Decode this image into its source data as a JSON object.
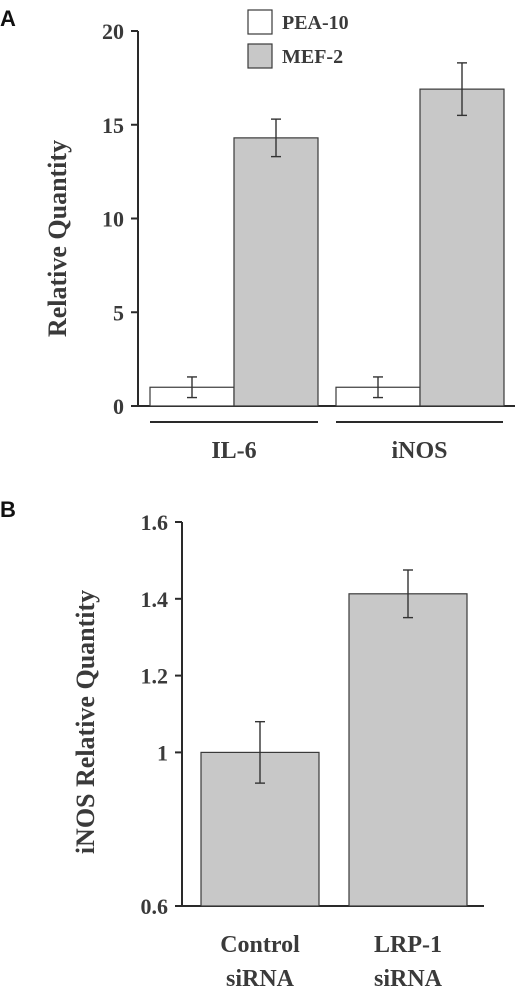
{
  "chart_data": [
    {
      "panel": "A",
      "type": "bar",
      "ylabel": "Relative Quantity",
      "ylim": [
        0,
        20
      ],
      "yticks": [
        "0",
        "5",
        "10",
        "15",
        "20"
      ],
      "categories": [
        "IL-6",
        "iNOS"
      ],
      "legend_position": "top-center",
      "series": [
        {
          "name": "PEA-10",
          "color": "#ffffff",
          "values": [
            1.0,
            1.0
          ],
          "errors": [
            0.55,
            0.55
          ]
        },
        {
          "name": "MEF-2",
          "color": "#c8c8c8",
          "values": [
            14.3,
            16.9
          ],
          "errors": [
            1.0,
            1.4
          ]
        }
      ]
    },
    {
      "panel": "B",
      "type": "bar",
      "ylabel": "iNOS Relative Quantity",
      "ylim": [
        0.6,
        1.6
      ],
      "yticks": [
        "0.6",
        "1",
        "1.2",
        "1.4",
        "1.6"
      ],
      "categories": [
        [
          "Control",
          "siRNA"
        ],
        [
          "LRP-1",
          "siRNA"
        ]
      ],
      "series": [
        {
          "color": "#c8c8c8",
          "values": [
            1.0,
            1.413
          ],
          "errors": [
            0.08,
            0.062
          ]
        }
      ]
    }
  ]
}
